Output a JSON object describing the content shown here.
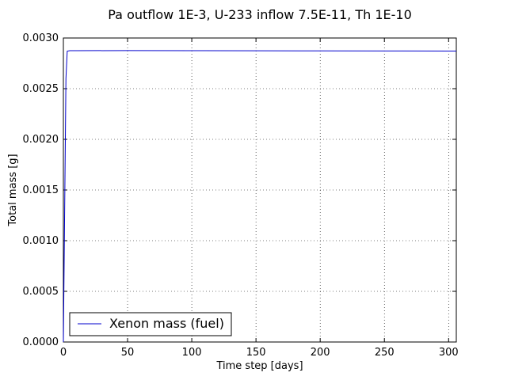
{
  "chart_data": {
    "type": "line",
    "title": "Pa outflow 1E-3, U-233 inflow 7.5E-11, Th 1E-10",
    "xlabel": "Time step [days]",
    "ylabel": "Total mass [g]",
    "xlim": [
      0,
      306
    ],
    "ylim": [
      0,
      0.003
    ],
    "x_ticks": [
      0,
      50,
      100,
      150,
      200,
      250,
      300
    ],
    "y_ticks": [
      0.0,
      0.0005,
      0.001,
      0.0015,
      0.002,
      0.0025,
      0.003
    ],
    "x_tick_labels": [
      "0",
      "50",
      "100",
      "150",
      "200",
      "250",
      "300"
    ],
    "y_tick_labels": [
      "0.0000",
      "0.0005",
      "0.0010",
      "0.0015",
      "0.0020",
      "0.0025",
      "0.0030"
    ],
    "grid": true,
    "legend_position": "lower-left",
    "series": [
      {
        "name": "Xenon mass (fuel)",
        "color": "#0000cc",
        "x": [
          0,
          1,
          2,
          3,
          5,
          10,
          50,
          100,
          150,
          200,
          250,
          300,
          306
        ],
        "y": [
          0.0,
          0.0013,
          0.0026,
          0.00287,
          0.002875,
          0.002875,
          0.002876,
          0.002875,
          0.002874,
          0.002873,
          0.002872,
          0.002871,
          0.002871
        ]
      }
    ]
  }
}
